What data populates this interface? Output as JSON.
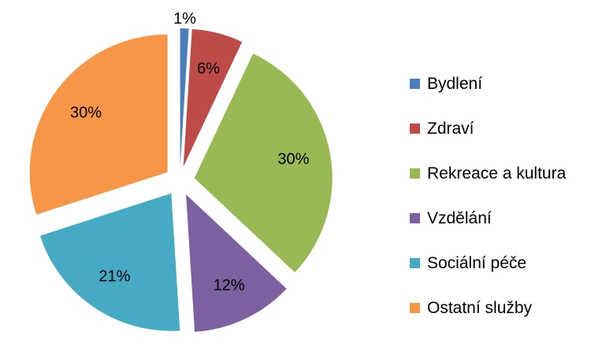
{
  "chart_data": {
    "type": "pie",
    "title": "",
    "categories": [
      "Bydlení",
      "Zdraví",
      "Rekreace a kultura",
      "Vzdělání",
      "Sociální péče",
      "Ostatní služby"
    ],
    "values": [
      1,
      6,
      30,
      12,
      21,
      30
    ],
    "data_labels": [
      "1%",
      "6%",
      "30%",
      "12%",
      "21%",
      "30%"
    ],
    "colors": [
      "#4a7ebb",
      "#be4b48",
      "#98b954",
      "#7d60a0",
      "#46aac5",
      "#f79646"
    ],
    "exploded": true,
    "start_angle_deg": 0,
    "direction": "clockwise",
    "legend": "right"
  }
}
